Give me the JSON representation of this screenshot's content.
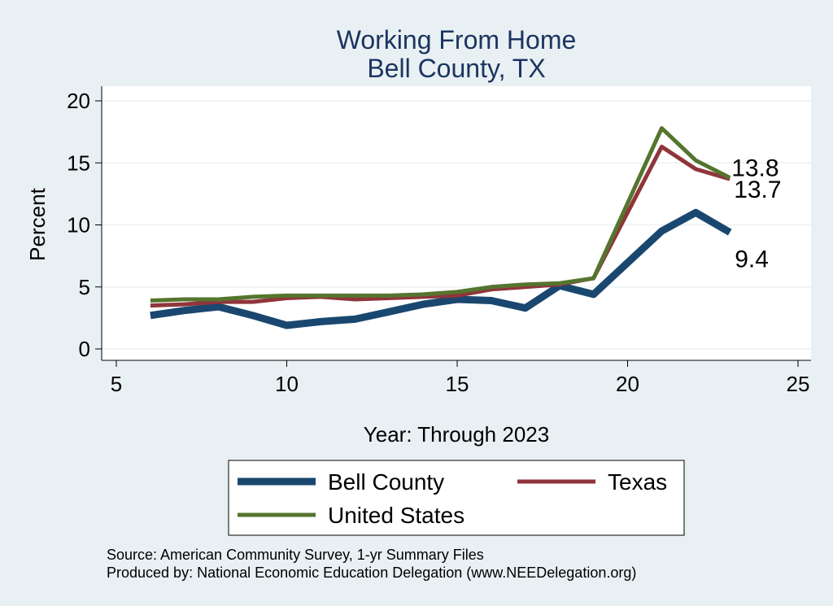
{
  "chart_data": {
    "type": "line",
    "title": "Working From Home",
    "subtitle": "Bell County, TX",
    "xlabel": "Year: Through 2023",
    "ylabel": "Percent",
    "xlim": [
      5,
      25
    ],
    "ylim": [
      0,
      20
    ],
    "xticks": [
      5,
      10,
      15,
      20,
      25
    ],
    "yticks": [
      0,
      5,
      10,
      15,
      20
    ],
    "grid": true,
    "series": [
      {
        "name": "Bell County",
        "color": "#1a476f",
        "x": [
          6,
          7,
          8,
          9,
          10,
          11,
          12,
          13,
          14,
          15,
          16,
          17,
          18,
          19,
          21,
          22,
          23
        ],
        "values": [
          2.7,
          3.1,
          3.4,
          2.7,
          1.9,
          2.2,
          2.4,
          3.0,
          3.6,
          4.0,
          3.9,
          3.3,
          5.1,
          4.4,
          9.5,
          11.0,
          9.4
        ],
        "end_label": "9.4"
      },
      {
        "name": "Texas",
        "color": "#90353b",
        "x": [
          6,
          7,
          8,
          9,
          10,
          11,
          12,
          13,
          14,
          15,
          16,
          17,
          18,
          19,
          21,
          22,
          23
        ],
        "values": [
          3.5,
          3.6,
          3.8,
          3.8,
          4.1,
          4.2,
          4.0,
          4.1,
          4.2,
          4.3,
          4.8,
          5.0,
          5.2,
          5.7,
          16.3,
          14.5,
          13.7
        ],
        "end_label": "13.7"
      },
      {
        "name": "United States",
        "color": "#55752f",
        "x": [
          6,
          7,
          8,
          9,
          10,
          11,
          12,
          13,
          14,
          15,
          16,
          17,
          18,
          19,
          21,
          22,
          23
        ],
        "values": [
          3.9,
          4.0,
          4.0,
          4.2,
          4.3,
          4.3,
          4.3,
          4.3,
          4.4,
          4.6,
          5.0,
          5.2,
          5.3,
          5.7,
          17.8,
          15.2,
          13.8
        ],
        "end_label": "13.8"
      }
    ],
    "legend": {
      "position": "bottom",
      "entries": [
        "Bell County",
        "Texas",
        "United States"
      ]
    },
    "notes": [
      "Source: American Community Survey, 1-yr Summary Files",
      "Produced by: National Economic Education Delegation (www.NEEDelegation.org)"
    ]
  }
}
